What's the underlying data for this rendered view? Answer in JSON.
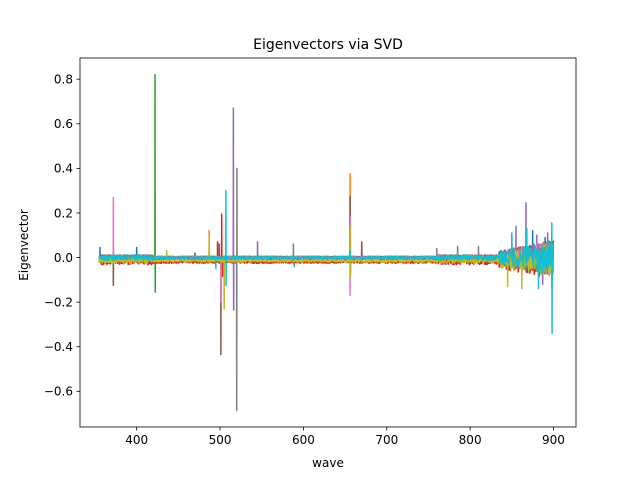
{
  "chart_data": {
    "type": "line",
    "title": "Eigenvectors via SVD",
    "xlabel": "wave",
    "ylabel": "Eigenvector",
    "xlim": [
      332,
      927
    ],
    "ylim": [
      -0.76,
      0.895
    ],
    "xticks": [
      400,
      500,
      600,
      700,
      800,
      900
    ],
    "xtick_labels": [
      "400",
      "500",
      "600",
      "700",
      "800",
      "900"
    ],
    "yticks": [
      -0.6,
      -0.4,
      -0.2,
      0.0,
      0.2,
      0.4,
      0.6,
      0.8
    ],
    "ytick_labels": [
      "−0.6",
      "−0.4",
      "−0.2",
      "0.0",
      "0.2",
      "0.4",
      "0.6",
      "0.8"
    ],
    "grid": false,
    "legend": "none",
    "wave_range": [
      355,
      900
    ],
    "series": [
      {
        "color": "#1f77b4",
        "baseline": 0.0,
        "spikes": [
          [
            356,
            0.045
          ],
          [
            372,
            0.04
          ],
          [
            400,
            0.045
          ],
          [
            470,
            0.02
          ],
          [
            850,
            0.1
          ],
          [
            875,
            0.12
          ],
          [
            890,
            0.09
          ],
          [
            898,
            -0.12
          ]
        ]
      },
      {
        "color": "#ff7f0e",
        "baseline": 0.0,
        "spikes": [
          [
            436,
            0.02
          ],
          [
            487,
            0.12
          ],
          [
            502,
            0.06
          ],
          [
            656,
            0.375
          ],
          [
            656.5,
            -0.05
          ],
          [
            670,
            0.03
          ]
        ]
      },
      {
        "color": "#2ca02c",
        "baseline": -0.005,
        "spikes": [
          [
            422,
            0.82
          ],
          [
            422.3,
            -0.155
          ],
          [
            656,
            0.05
          ]
        ]
      },
      {
        "color": "#d62728",
        "baseline": -0.02,
        "spikes": [
          [
            497,
            0.07
          ],
          [
            502,
            0.195
          ],
          [
            503,
            -0.085
          ],
          [
            656,
            0.18
          ],
          [
            670,
            0.07
          ]
        ]
      },
      {
        "color": "#9467bd",
        "baseline": 0.0,
        "spikes": [
          [
            516,
            0.67
          ],
          [
            516.3,
            -0.235
          ],
          [
            545,
            0.07
          ],
          [
            855,
            0.14
          ],
          [
            867,
            0.245
          ],
          [
            880,
            0.1
          ],
          [
            887,
            -0.12
          ],
          [
            893,
            0.11
          ]
        ]
      },
      {
        "color": "#8c564b",
        "baseline": 0.0,
        "spikes": [
          [
            372,
            -0.125
          ],
          [
            501,
            -0.435
          ],
          [
            499,
            0.06
          ],
          [
            656,
            0.275
          ],
          [
            656.4,
            -0.07
          ],
          [
            670,
            0.06
          ]
        ]
      },
      {
        "color": "#e377c2",
        "baseline": 0.0,
        "spikes": [
          [
            372,
            0.27
          ],
          [
            501,
            -0.2
          ],
          [
            656,
            -0.17
          ],
          [
            656.4,
            0.18
          ]
        ]
      },
      {
        "color": "#7f7f7f",
        "baseline": 0.0,
        "spikes": [
          [
            520,
            -0.685
          ],
          [
            520.3,
            0.4
          ],
          [
            588,
            0.06
          ],
          [
            589,
            -0.04
          ],
          [
            656,
            0.1
          ],
          [
            760,
            0.04
          ],
          [
            785,
            0.05
          ],
          [
            810,
            0.05
          ]
        ]
      },
      {
        "color": "#bcbd22",
        "baseline": -0.015,
        "spikes": [
          [
            436,
            0.03
          ],
          [
            487,
            0.09
          ],
          [
            505,
            -0.23
          ],
          [
            656,
            0.14
          ],
          [
            656.5,
            -0.09
          ],
          [
            845,
            -0.13
          ],
          [
            862,
            -0.14
          ],
          [
            898,
            -0.14
          ]
        ]
      },
      {
        "color": "#17becf",
        "baseline": 0.0,
        "spikes": [
          [
            507,
            0.3
          ],
          [
            507.3,
            -0.125
          ],
          [
            495,
            -0.05
          ],
          [
            656,
            0.03
          ],
          [
            850,
            0.11
          ],
          [
            868,
            0.13
          ],
          [
            882,
            -0.14
          ],
          [
            898,
            0.155
          ],
          [
            898.3,
            -0.34
          ]
        ]
      }
    ]
  }
}
